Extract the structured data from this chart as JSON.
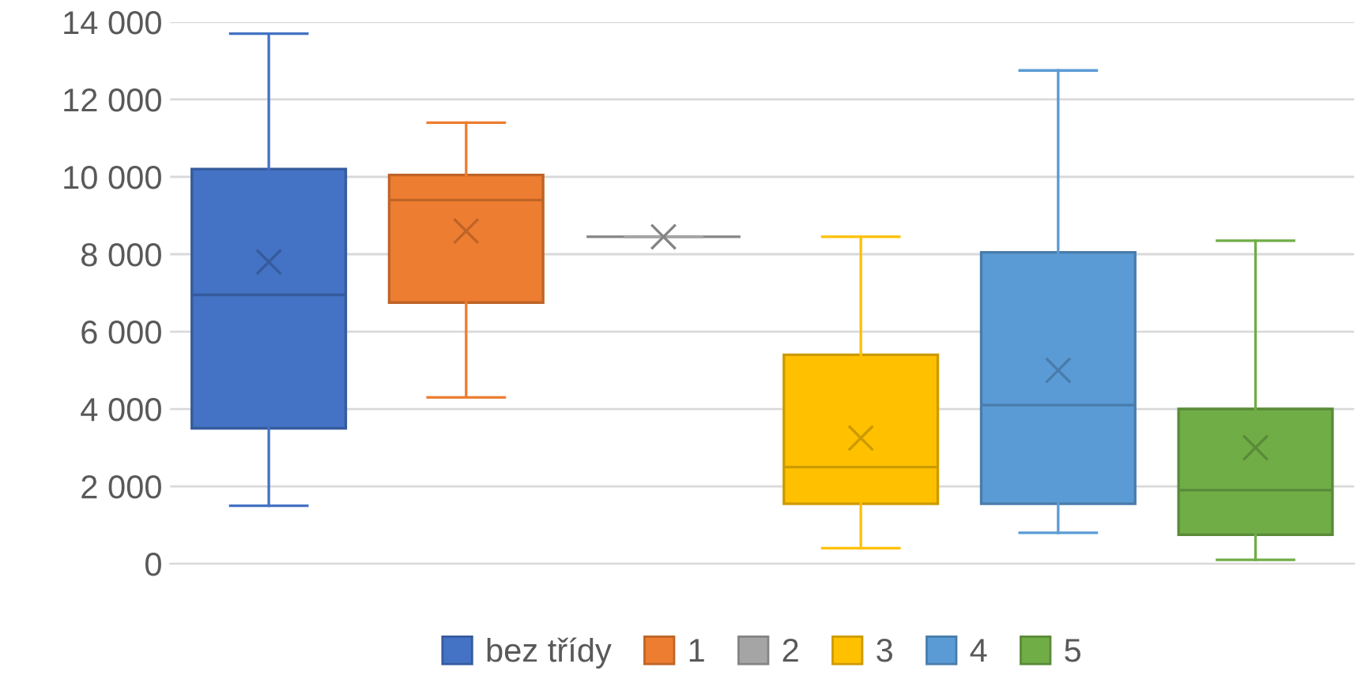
{
  "chart_data": {
    "type": "box",
    "categories": [
      null
    ],
    "series": [
      {
        "name": "bez třídy",
        "color": "#4472c4",
        "boxes": [
          {
            "low": 1500,
            "q1": 3500,
            "median": 6950,
            "q3": 10200,
            "high": 13700,
            "mean": 7800
          }
        ]
      },
      {
        "name": "1",
        "color": "#ed7d31",
        "boxes": [
          {
            "low": 4300,
            "q1": 6750,
            "median": 9400,
            "q3": 10050,
            "high": 11400,
            "mean": 8600
          }
        ]
      },
      {
        "name": "2",
        "color": "#a5a5a5",
        "boxes": [
          {
            "low": 8450,
            "q1": 8450,
            "median": 8450,
            "q3": 8450,
            "high": 8450,
            "mean": 8450
          }
        ]
      },
      {
        "name": "3",
        "color": "#ffc000",
        "boxes": [
          {
            "low": 400,
            "q1": 1550,
            "median": 2500,
            "q3": 5400,
            "high": 8450,
            "mean": 3250
          }
        ]
      },
      {
        "name": "4",
        "color": "#5b9bd5",
        "boxes": [
          {
            "low": 800,
            "q1": 1550,
            "median": 4100,
            "q3": 8050,
            "high": 12750,
            "mean": 5000
          }
        ]
      },
      {
        "name": "5",
        "color": "#70ad47",
        "boxes": [
          {
            "low": 100,
            "q1": 750,
            "median": 1900,
            "q3": 4000,
            "high": 8350,
            "mean": 3000
          }
        ]
      }
    ],
    "ylim": [
      0,
      14000
    ],
    "yticks": [
      {
        "value": 0,
        "label": "0"
      },
      {
        "value": 2000,
        "label": "2 000"
      },
      {
        "value": 4000,
        "label": "4 000"
      },
      {
        "value": 6000,
        "label": "6 000"
      },
      {
        "value": 8000,
        "label": "8 000"
      },
      {
        "value": 10000,
        "label": "10 000"
      },
      {
        "value": 12000,
        "label": "12 000"
      },
      {
        "value": 14000,
        "label": "14 000"
      }
    ],
    "grid": "y",
    "legend": "bottom"
  }
}
